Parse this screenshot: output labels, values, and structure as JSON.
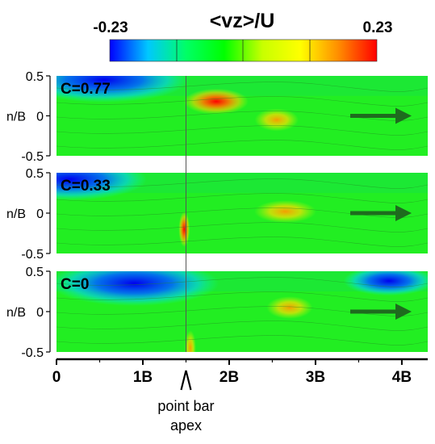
{
  "chart_data": {
    "type": "heatmap",
    "colorbar": {
      "title": "<vz>/U",
      "min_label": "-0.23",
      "max_label": "0.23",
      "range": [
        -0.23,
        0.23
      ],
      "colors": [
        "#0000ff",
        "#00c8ff",
        "#00ff66",
        "#00ff00",
        "#c8ff00",
        "#ffff00",
        "#ff8c00",
        "#ff0000"
      ]
    },
    "xlabel": "",
    "ylabel": "n/B",
    "xlim": [
      0,
      4.3
    ],
    "ylim": [
      -0.5,
      0.5
    ],
    "x_ticks": [
      {
        "value": 0,
        "label": "0"
      },
      {
        "value": 1,
        "label": "1B"
      },
      {
        "value": 2,
        "label": "2B"
      },
      {
        "value": 3,
        "label": "3B"
      },
      {
        "value": 4,
        "label": "4B"
      }
    ],
    "y_ticks": [
      {
        "value": 0.5,
        "label": "0.5"
      },
      {
        "value": 0,
        "label": "0"
      },
      {
        "value": -0.5,
        "label": "-0.5"
      }
    ],
    "panels": [
      {
        "label": "C=0.77",
        "features": [
          {
            "kind": "negative",
            "x": 0.55,
            "y": 0.45,
            "value": -0.23
          },
          {
            "kind": "positive",
            "x": 1.85,
            "y": 0.18,
            "value": 0.23
          },
          {
            "kind": "positive",
            "x": 2.55,
            "y": -0.05,
            "value": 0.06
          }
        ]
      },
      {
        "label": "C=0.33",
        "features": [
          {
            "kind": "negative",
            "x": 0.15,
            "y": 0.42,
            "value": -0.2
          },
          {
            "kind": "positive",
            "x": 1.48,
            "y": -0.2,
            "value": 0.23
          },
          {
            "kind": "positive",
            "x": 2.65,
            "y": 0.02,
            "value": 0.16
          }
        ]
      },
      {
        "label": "C=0",
        "features": [
          {
            "kind": "negative",
            "x": 0.9,
            "y": 0.35,
            "value": -0.23
          },
          {
            "kind": "negative",
            "x": 3.85,
            "y": 0.38,
            "value": -0.07
          },
          {
            "kind": "positive",
            "x": 1.55,
            "y": -0.45,
            "value": 0.2
          },
          {
            "kind": "positive",
            "x": 2.7,
            "y": 0.05,
            "value": 0.1
          }
        ]
      }
    ],
    "apex": {
      "x": 1.5,
      "label_line1": "point bar",
      "label_line2": "apex"
    },
    "flow_arrow_color": "#1e6b1e"
  }
}
